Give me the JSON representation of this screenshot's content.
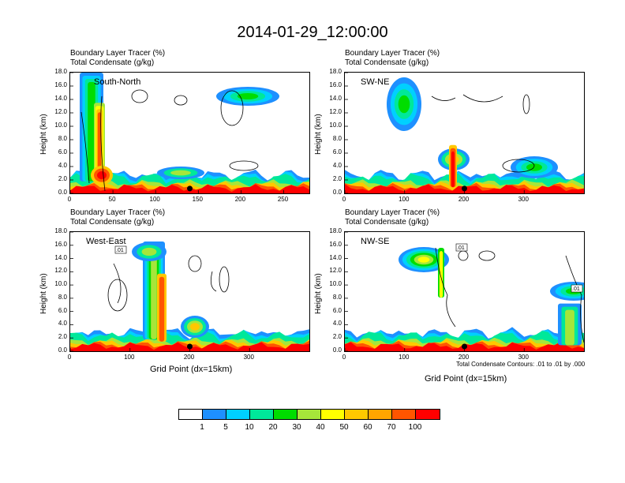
{
  "title": "2014-01-29_12:00:00",
  "panel_title_line1": "Boundary Layer Tracer   (%)",
  "panel_title_line2": "Total Condensate   (g/kg)",
  "ylabel": "Height (km)",
  "xlabel": "Grid Point (dx=15km)",
  "contour_note": "Total Condensate Contours: .01 to .01 by .000",
  "colors": {
    "levels": [
      "#ffffff",
      "#1e90ff",
      "#00d0ff",
      "#00e89a",
      "#00dd00",
      "#a6e63a",
      "#ffff00",
      "#ffc800",
      "#ffa500",
      "#ff5500",
      "#ff0000"
    ]
  },
  "chart_data": [
    {
      "type": "heatmap",
      "panel": "South-North",
      "title": "Boundary Layer Tracer (%) / Total Condensate (g/kg)",
      "ylabel": "Height (km)",
      "ylim": [
        0,
        18
      ],
      "yticks": [
        "0.0",
        "2.0",
        "4.0",
        "6.0",
        "8.0",
        "10.0",
        "12.0",
        "14.0",
        "16.0",
        "18.0"
      ],
      "xlim": [
        0,
        280
      ],
      "xticks": [
        "0",
        "50",
        "100",
        "150",
        "200",
        "250"
      ],
      "xtick_values": [
        0,
        50,
        100,
        150,
        200,
        250
      ],
      "marker_x": 140,
      "marker_y": 0.6
    },
    {
      "type": "heatmap",
      "panel": "SW-NE",
      "title": "Boundary Layer Tracer (%) / Total Condensate (g/kg)",
      "ylabel": "Height (km)",
      "ylim": [
        0,
        18
      ],
      "yticks": [
        "0.0",
        "2.0",
        "4.0",
        "6.0",
        "8.0",
        "10.0",
        "12.0",
        "14.0",
        "16.0",
        "18.0"
      ],
      "xlim": [
        0,
        400
      ],
      "xticks": [
        "0",
        "100",
        "200",
        "300"
      ],
      "xtick_values": [
        0,
        100,
        200,
        300
      ],
      "marker_x": 200,
      "marker_y": 0.6
    },
    {
      "type": "heatmap",
      "panel": "West-East",
      "title": "Boundary Layer Tracer (%) / Total Condensate (g/kg)",
      "ylabel": "Height (km)",
      "xlabel": "Grid Point (dx=15km)",
      "ylim": [
        0,
        18
      ],
      "yticks": [
        "0.0",
        "2.0",
        "4.0",
        "6.0",
        "8.0",
        "10.0",
        "12.0",
        "14.0",
        "16.0",
        "18.0"
      ],
      "xlim": [
        0,
        400
      ],
      "xticks": [
        "0",
        "100",
        "200",
        "300"
      ],
      "xtick_values": [
        0,
        100,
        200,
        300
      ],
      "marker_x": 200,
      "marker_y": 0.6,
      "contour_label": ".01"
    },
    {
      "type": "heatmap",
      "panel": "NW-SE",
      "title": "Boundary Layer Tracer (%) / Total Condensate (g/kg)",
      "ylabel": "Height (km)",
      "xlabel": "Grid Point (dx=15km)",
      "ylim": [
        0,
        18
      ],
      "yticks": [
        "0.0",
        "2.0",
        "4.0",
        "6.0",
        "8.0",
        "10.0",
        "12.0",
        "14.0",
        "16.0",
        "18.0"
      ],
      "xlim": [
        0,
        400
      ],
      "xticks": [
        "0",
        "100",
        "200",
        "300"
      ],
      "xtick_values": [
        0,
        100,
        200,
        300
      ],
      "marker_x": 200,
      "marker_y": 0.6,
      "contour_labels": [
        ".01",
        ".01"
      ]
    }
  ],
  "colorbar": {
    "labels": [
      "1",
      "5",
      "10",
      "20",
      "30",
      "40",
      "50",
      "60",
      "70",
      "100"
    ],
    "units": "Boundary Layer Tracer (%)"
  }
}
